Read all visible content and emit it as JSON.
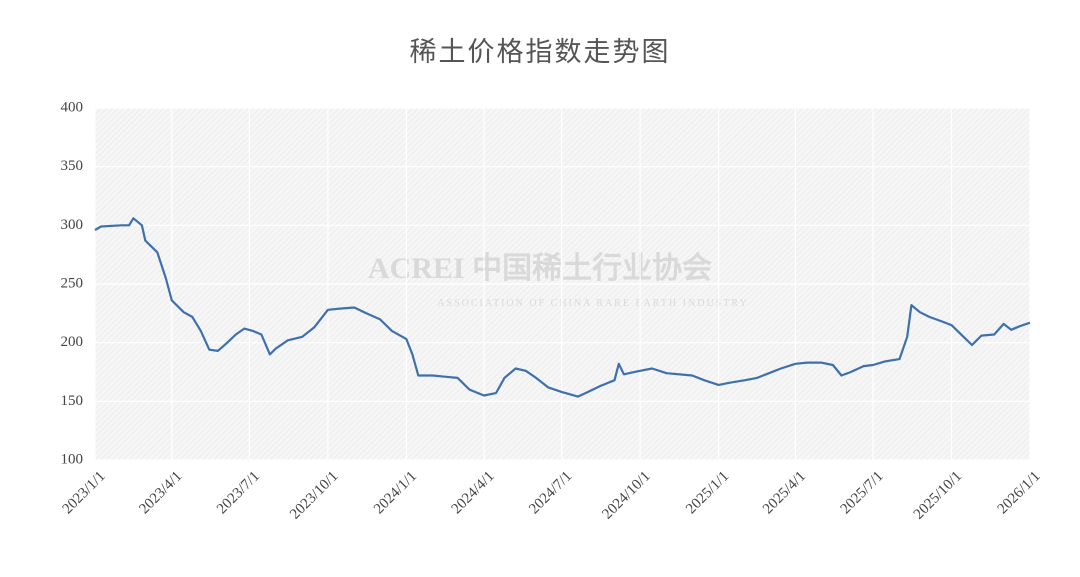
{
  "chart_data": {
    "type": "line",
    "title": "稀土价格指数走势图",
    "watermark": "ACREI 中国稀土行业协会",
    "watermark_sub": "ASSOCIATION OF CHINA RARE EARTH INDUSTRY",
    "x": [
      "2023/1/1",
      "2023/1/8",
      "2023/2/1",
      "2023/2/10",
      "2023/2/15",
      "2023/2/25",
      "2023/3/1",
      "2023/3/15",
      "2023/3/25",
      "2023/4/1",
      "2023/4/15",
      "2023/4/25",
      "2023/5/5",
      "2023/5/15",
      "2023/5/25",
      "2023/6/5",
      "2023/6/15",
      "2023/6/25",
      "2023/7/5",
      "2023/7/15",
      "2023/7/25",
      "2023/8/1",
      "2023/8/15",
      "2023/9/1",
      "2023/9/15",
      "2023/10/1",
      "2023/10/15",
      "2023/11/1",
      "2023/11/15",
      "2023/12/1",
      "2023/12/15",
      "2024/1/1",
      "2024/1/8",
      "2024/1/15",
      "2024/2/1",
      "2024/2/15",
      "2024/3/1",
      "2024/3/15",
      "2024/4/1",
      "2024/4/15",
      "2024/4/25",
      "2024/5/8",
      "2024/5/20",
      "2024/6/1",
      "2024/6/15",
      "2024/7/1",
      "2024/7/20",
      "2024/8/1",
      "2024/8/15",
      "2024/9/1",
      "2024/9/6",
      "2024/9/12",
      "2024/10/1",
      "2024/10/15",
      "2024/11/1",
      "2024/12/1",
      "2024/12/15",
      "2025/1/1",
      "2025/1/15",
      "2025/2/1",
      "2025/2/15",
      "2025/3/1",
      "2025/3/15",
      "2025/4/1",
      "2025/4/15",
      "2025/5/1",
      "2025/5/15",
      "2025/5/25",
      "2025/6/5",
      "2025/6/20",
      "2025/7/1",
      "2025/7/15",
      "2025/8/1",
      "2025/8/10",
      "2025/8/15",
      "2025/8/25",
      "2025/9/5",
      "2025/9/20",
      "2025/10/1",
      "2025/10/15",
      "2025/10/25",
      "2025/11/5",
      "2025/11/20",
      "2025/12/1",
      "2025/12/10",
      "2025/12/20",
      "2026/1/1"
    ],
    "series": [
      {
        "name": "稀土价格指数",
        "color": "#3f70ae",
        "values": [
          296,
          299,
          300,
          300,
          306,
          300,
          287,
          277,
          255,
          236,
          226,
          222,
          210,
          194,
          193,
          200,
          207,
          212,
          210,
          207,
          190,
          195,
          202,
          205,
          213,
          228,
          229,
          230,
          225,
          220,
          210,
          203,
          190,
          172,
          172,
          171,
          170,
          160,
          155,
          157,
          170,
          178,
          176,
          170,
          162,
          158,
          154,
          158,
          163,
          168,
          182,
          173,
          176,
          178,
          174,
          172,
          168,
          164,
          166,
          168,
          170,
          174,
          178,
          182,
          183,
          183,
          181,
          172,
          175,
          180,
          181,
          184,
          186,
          205,
          232,
          226,
          222,
          218,
          215,
          205,
          198,
          206,
          207,
          216,
          211,
          214,
          217
        ]
      }
    ],
    "xlim": [
      "2023/1/1",
      "2026/1/1"
    ],
    "xticks": [
      "2023/1/1",
      "2023/4/1",
      "2023/7/1",
      "2023/10/1",
      "2024/1/1",
      "2024/4/1",
      "2024/7/1",
      "2024/10/1",
      "2025/1/1",
      "2025/4/1",
      "2025/7/1",
      "2025/10/1",
      "2026/1/1"
    ],
    "ylim": [
      100,
      400
    ],
    "yticks": [
      100,
      150,
      200,
      250,
      300,
      350,
      400
    ],
    "grid": true
  }
}
